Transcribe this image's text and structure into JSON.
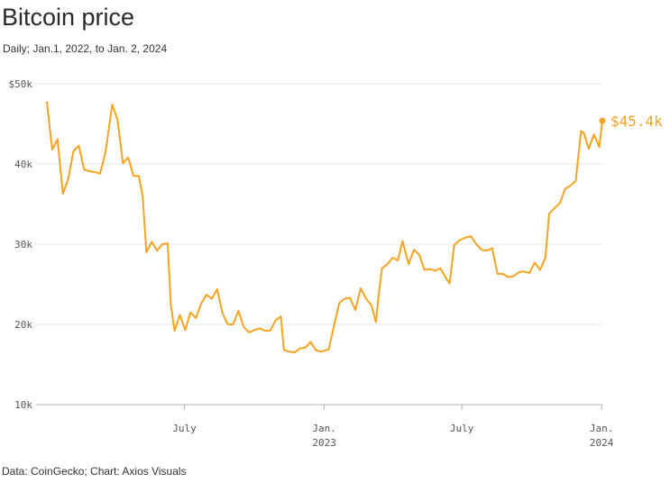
{
  "title": "Bitcoin price",
  "subtitle": "Daily; Jan.1, 2022, to Jan. 2, 2024",
  "source": "Data: CoinGecko; Chart: Axios Visuals",
  "chart_data": {
    "type": "line",
    "title": "Bitcoin price",
    "subtitle": "Daily; Jan.1, 2022, to Jan. 2, 2024",
    "ylim": [
      10000,
      50000
    ],
    "xlim": [
      "2022-01-01",
      "2024-01-02"
    ],
    "y_ticks": [
      {
        "value": 50000,
        "label": "$50k"
      },
      {
        "value": 40000,
        "label": "40k"
      },
      {
        "value": 30000,
        "label": "30k"
      },
      {
        "value": 20000,
        "label": "20k"
      },
      {
        "value": 10000,
        "label": "10k"
      }
    ],
    "x_ticks": [
      {
        "value": "2022-07-01",
        "label": "July",
        "label2": ""
      },
      {
        "value": "2023-01-01",
        "label": "Jan.",
        "label2": "2023"
      },
      {
        "value": "2023-07-01",
        "label": "July",
        "label2": ""
      },
      {
        "value": "2024-01-01",
        "label": "Jan.",
        "label2": "2024"
      }
    ],
    "grid": true,
    "color": "#f5a320",
    "end_label": "$45.4k",
    "series": [
      {
        "x": [
          "2022-01-01",
          "2022-01-08",
          "2022-01-15",
          "2022-01-22",
          "2022-01-29",
          "2022-02-05",
          "2022-02-12",
          "2022-02-19",
          "2022-02-26",
          "2022-03-05",
          "2022-03-12",
          "2022-03-19",
          "2022-03-28",
          "2022-04-04",
          "2022-04-11",
          "2022-04-18",
          "2022-04-25",
          "2022-05-02",
          "2022-05-07",
          "2022-05-12",
          "2022-05-19",
          "2022-05-26",
          "2022-06-02",
          "2022-06-09",
          "2022-06-13",
          "2022-06-18",
          "2022-06-25",
          "2022-07-02",
          "2022-07-09",
          "2022-07-16",
          "2022-07-23",
          "2022-07-30",
          "2022-08-06",
          "2022-08-13",
          "2022-08-20",
          "2022-08-27",
          "2022-09-03",
          "2022-09-10",
          "2022-09-17",
          "2022-09-24",
          "2022-10-01",
          "2022-10-08",
          "2022-10-15",
          "2022-10-22",
          "2022-10-29",
          "2022-11-05",
          "2022-11-09",
          "2022-11-16",
          "2022-11-23",
          "2022-11-30",
          "2022-12-07",
          "2022-12-14",
          "2022-12-21",
          "2022-12-28",
          "2023-01-07",
          "2023-01-14",
          "2023-01-21",
          "2023-01-28",
          "2023-02-04",
          "2023-02-11",
          "2023-02-18",
          "2023-02-25",
          "2023-03-04",
          "2023-03-10",
          "2023-03-14",
          "2023-03-18",
          "2023-03-25",
          "2023-04-01",
          "2023-04-08",
          "2023-04-14",
          "2023-04-22",
          "2023-04-29",
          "2023-05-06",
          "2023-05-13",
          "2023-05-20",
          "2023-05-27",
          "2023-06-03",
          "2023-06-10",
          "2023-06-15",
          "2023-06-21",
          "2023-06-28",
          "2023-07-05",
          "2023-07-13",
          "2023-07-20",
          "2023-07-27",
          "2023-08-03",
          "2023-08-10",
          "2023-08-17",
          "2023-08-24",
          "2023-08-31",
          "2023-09-07",
          "2023-09-14",
          "2023-09-21",
          "2023-09-28",
          "2023-10-05",
          "2023-10-12",
          "2023-10-19",
          "2023-10-24",
          "2023-10-31",
          "2023-11-07",
          "2023-11-14",
          "2023-11-21",
          "2023-11-28",
          "2023-12-05",
          "2023-12-09",
          "2023-12-15",
          "2023-12-22",
          "2023-12-29",
          "2024-01-02"
        ],
        "y": [
          47700,
          41800,
          43100,
          36300,
          38100,
          41600,
          42300,
          39300,
          39100,
          39000,
          38800,
          41400,
          47400,
          45500,
          40100,
          40800,
          38500,
          38500,
          36000,
          29000,
          30300,
          29200,
          30000,
          30100,
          22500,
          19200,
          21200,
          19300,
          21500,
          20800,
          22600,
          23700,
          23200,
          24400,
          21400,
          20000,
          20000,
          21700,
          19700,
          19000,
          19300,
          19500,
          19200,
          19200,
          20500,
          21000,
          16800,
          16600,
          16500,
          17000,
          17100,
          17800,
          16800,
          16600,
          16900,
          19900,
          22700,
          23200,
          23300,
          21800,
          24500,
          23200,
          22400,
          20300,
          24000,
          27000,
          27500,
          28300,
          28000,
          30400,
          27500,
          29300,
          28700,
          26800,
          26900,
          26700,
          27000,
          25800,
          25100,
          29900,
          30500,
          30800,
          31000,
          30000,
          29300,
          29200,
          29500,
          26300,
          26300,
          25900,
          26000,
          26500,
          26600,
          26400,
          27700,
          26800,
          28300,
          33800,
          34500,
          35100,
          36900,
          37300,
          37900,
          44100,
          43800,
          41900,
          43700,
          42100,
          45400
        ]
      }
    ]
  }
}
